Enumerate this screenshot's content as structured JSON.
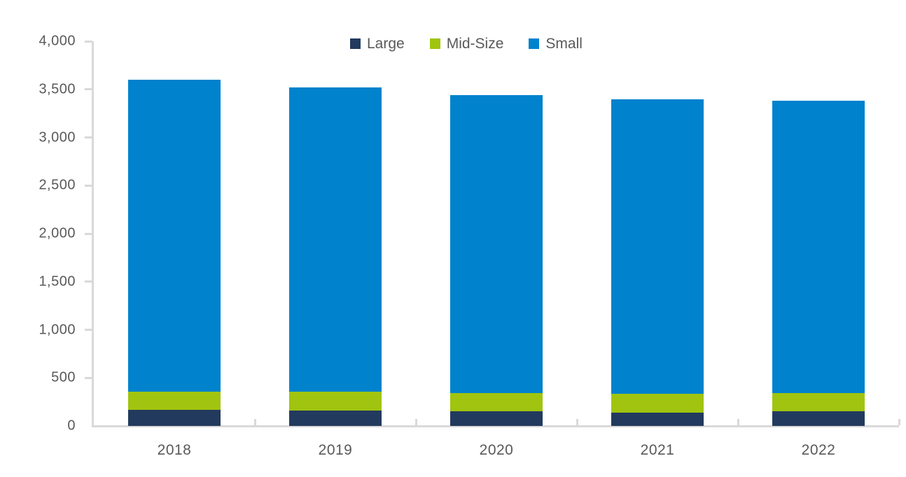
{
  "chart_data": {
    "type": "bar",
    "stacked": true,
    "title": "",
    "xlabel": "",
    "ylabel": "",
    "categories": [
      "2018",
      "2019",
      "2020",
      "2021",
      "2022"
    ],
    "series": [
      {
        "name": "Large",
        "color": "#223a5e",
        "values": [
          165,
          160,
          155,
          135,
          155
        ]
      },
      {
        "name": "Mid-Size",
        "color": "#a0c40f",
        "values": [
          190,
          195,
          185,
          200,
          185
        ]
      },
      {
        "name": "Small",
        "color": "#0082cd",
        "values": [
          3245,
          3165,
          3100,
          3065,
          3045
        ]
      }
    ],
    "totals": [
      3600,
      3520,
      3440,
      3400,
      3385
    ],
    "ylim": [
      0,
      4000
    ],
    "y_tick_step": 500,
    "y_tick_labels": [
      "4,000",
      "3,500",
      "3,000",
      "2,500",
      "2,000",
      "1,500",
      "1,000",
      "500",
      "0"
    ],
    "grid": false,
    "legend_position": "top-center"
  },
  "colors": {
    "background": "#ffffff",
    "axis_line": "#d9d9d9",
    "tick_label_text": "#595959",
    "legend_text": "#595959"
  }
}
